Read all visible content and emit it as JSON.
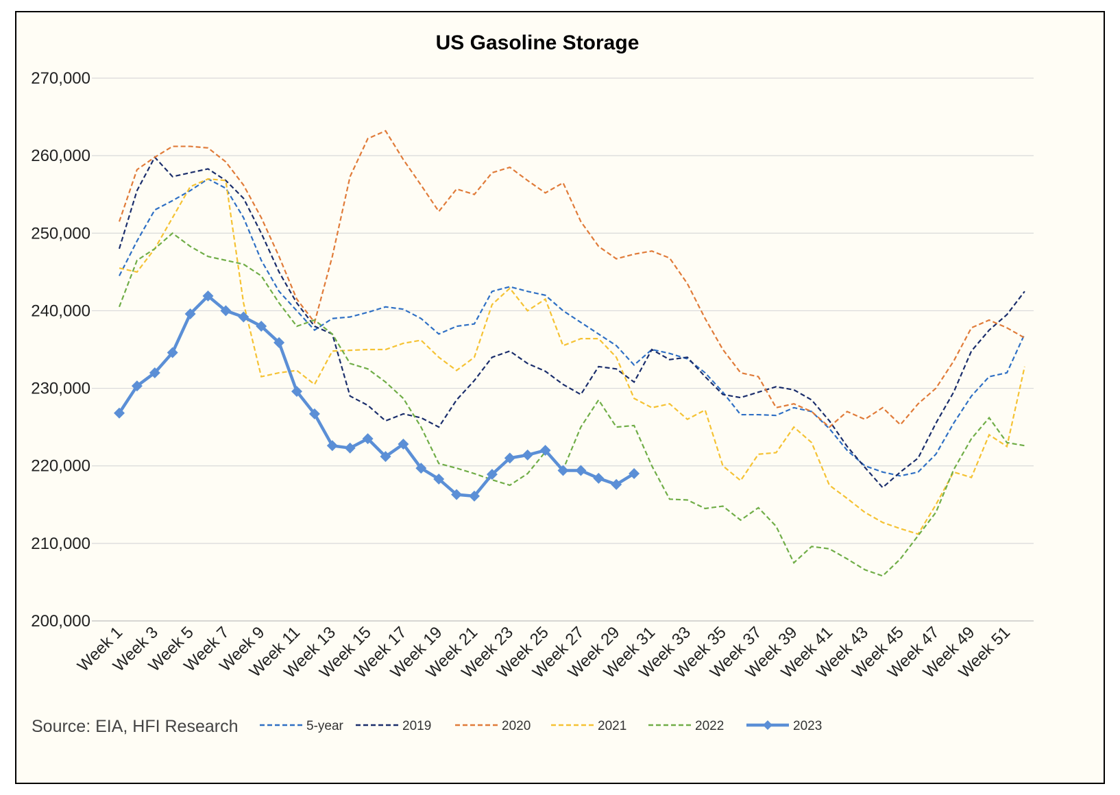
{
  "chart_data": {
    "type": "line",
    "title": "US Gasoline Storage",
    "source": "Source: EIA, HFI Research",
    "ylim": [
      200000,
      270000
    ],
    "yticks": [
      200000,
      210000,
      220000,
      230000,
      240000,
      250000,
      260000,
      270000
    ],
    "ytick_labels": [
      "200,000",
      "210,000",
      "220,000",
      "230,000",
      "240,000",
      "250,000",
      "260,000",
      "270,000"
    ],
    "x_tick_labels": [
      "Week 1",
      "Week 3",
      "Week 5",
      "Week 7",
      "Week 9",
      "Week 11",
      "Week 13",
      "Week 15",
      "Week 17",
      "Week 19",
      "Week 21",
      "Week 23",
      "Week 25",
      "Week 27",
      "Week 29",
      "Week 31",
      "Week 33",
      "Week 35",
      "Week 37",
      "Week 39",
      "Week 41",
      "Week 43",
      "Week 45",
      "Week 47",
      "Week 49",
      "Week 51"
    ],
    "x_tick_weeks": [
      1,
      3,
      5,
      7,
      9,
      11,
      13,
      15,
      17,
      19,
      21,
      23,
      25,
      27,
      29,
      31,
      33,
      35,
      37,
      39,
      41,
      43,
      45,
      47,
      49,
      51
    ],
    "grid": true,
    "legend_position": "bottom",
    "series": [
      {
        "name": "5-year",
        "color": "#2e6fc4",
        "style": "dashed",
        "values": [
          244500,
          249000,
          253000,
          254200,
          255500,
          257000,
          255800,
          252000,
          246500,
          242500,
          240000,
          237500,
          239000,
          239200,
          239800,
          240500,
          240200,
          239000,
          237000,
          238000,
          238300,
          242500,
          243100,
          242500,
          242000,
          240000,
          238500,
          237000,
          235500,
          233000,
          235000,
          234500,
          233800,
          232000,
          229500,
          226600,
          226600,
          226500,
          227500,
          227000,
          224800,
          222000,
          220000,
          219200,
          218700,
          219200,
          221500,
          225500,
          229000,
          231500,
          232000,
          237000
        ]
      },
      {
        "name": "2019",
        "color": "#1a2d6b",
        "style": "dashed",
        "values": [
          248000,
          255500,
          259800,
          257300,
          257800,
          258300,
          256800,
          254500,
          250000,
          245000,
          241000,
          238000,
          237000,
          229000,
          227800,
          225800,
          226700,
          226200,
          225000,
          228500,
          231000,
          234000,
          234800,
          233200,
          232200,
          230500,
          229200,
          232800,
          232500,
          230800,
          235000,
          233700,
          234000,
          231500,
          229200,
          228800,
          229500,
          230200,
          229800,
          228500,
          225800,
          222500,
          219800,
          217200,
          219200,
          221000,
          225500,
          229500,
          234800,
          237500,
          239500,
          242500
        ]
      },
      {
        "name": "2020",
        "color": "#e07b39",
        "style": "dashed",
        "values": [
          251500,
          258200,
          259800,
          261200,
          261200,
          261000,
          259200,
          256200,
          252000,
          247000,
          241500,
          238500,
          247000,
          257300,
          262200,
          263200,
          259500,
          256200,
          252800,
          255700,
          255000,
          257800,
          258500,
          256800,
          255200,
          256500,
          251500,
          248300,
          246700,
          247300,
          247700,
          246800,
          243500,
          239000,
          235000,
          232000,
          231500,
          227500,
          228000,
          227000,
          225000,
          227000,
          226000,
          227500,
          225300,
          228000,
          230000,
          233500,
          237800,
          238800,
          237800,
          236500
        ]
      },
      {
        "name": "2021",
        "color": "#f5c233",
        "style": "dashed",
        "values": [
          245500,
          245000,
          248000,
          252000,
          256000,
          257000,
          256800,
          241000,
          231500,
          232000,
          232300,
          230500,
          234800,
          234900,
          235000,
          235000,
          235800,
          236200,
          234000,
          232300,
          234000,
          240800,
          242900,
          240000,
          241500,
          235500,
          236400,
          236400,
          234000,
          228700,
          227500,
          228000,
          226000,
          227200,
          220000,
          218100,
          221500,
          221700,
          225000,
          223000,
          217500,
          215800,
          214000,
          212700,
          211900,
          211200,
          215000,
          219200,
          218500,
          224000,
          222500,
          232800
        ]
      },
      {
        "name": "2022",
        "color": "#70ad47",
        "style": "dashed",
        "values": [
          240500,
          246500,
          248000,
          250000,
          248300,
          247000,
          246500,
          246000,
          244500,
          241000,
          238000,
          238800,
          237000,
          233200,
          232500,
          230800,
          228700,
          225000,
          220300,
          219700,
          219000,
          218200,
          217500,
          219000,
          221800,
          219500,
          225000,
          228500,
          225000,
          225200,
          220000,
          215700,
          215600,
          214500,
          214800,
          213000,
          214600,
          212200,
          207500,
          209600,
          209300,
          208000,
          206600,
          205800,
          208000,
          211000,
          214000,
          219500,
          223500,
          226200,
          223000,
          222600
        ]
      },
      {
        "name": "2023",
        "color": "#5b8fd6",
        "style": "solid-marker",
        "values": [
          226800,
          230300,
          232000,
          234600,
          239600,
          241900,
          240000,
          239200,
          238000,
          235900,
          229600,
          226700,
          222600,
          222300,
          223500,
          221200,
          222800,
          219700,
          218300,
          216300,
          216100,
          218900,
          221000,
          221400,
          222000,
          219400,
          219400,
          218400,
          217600,
          219000
        ]
      }
    ]
  }
}
